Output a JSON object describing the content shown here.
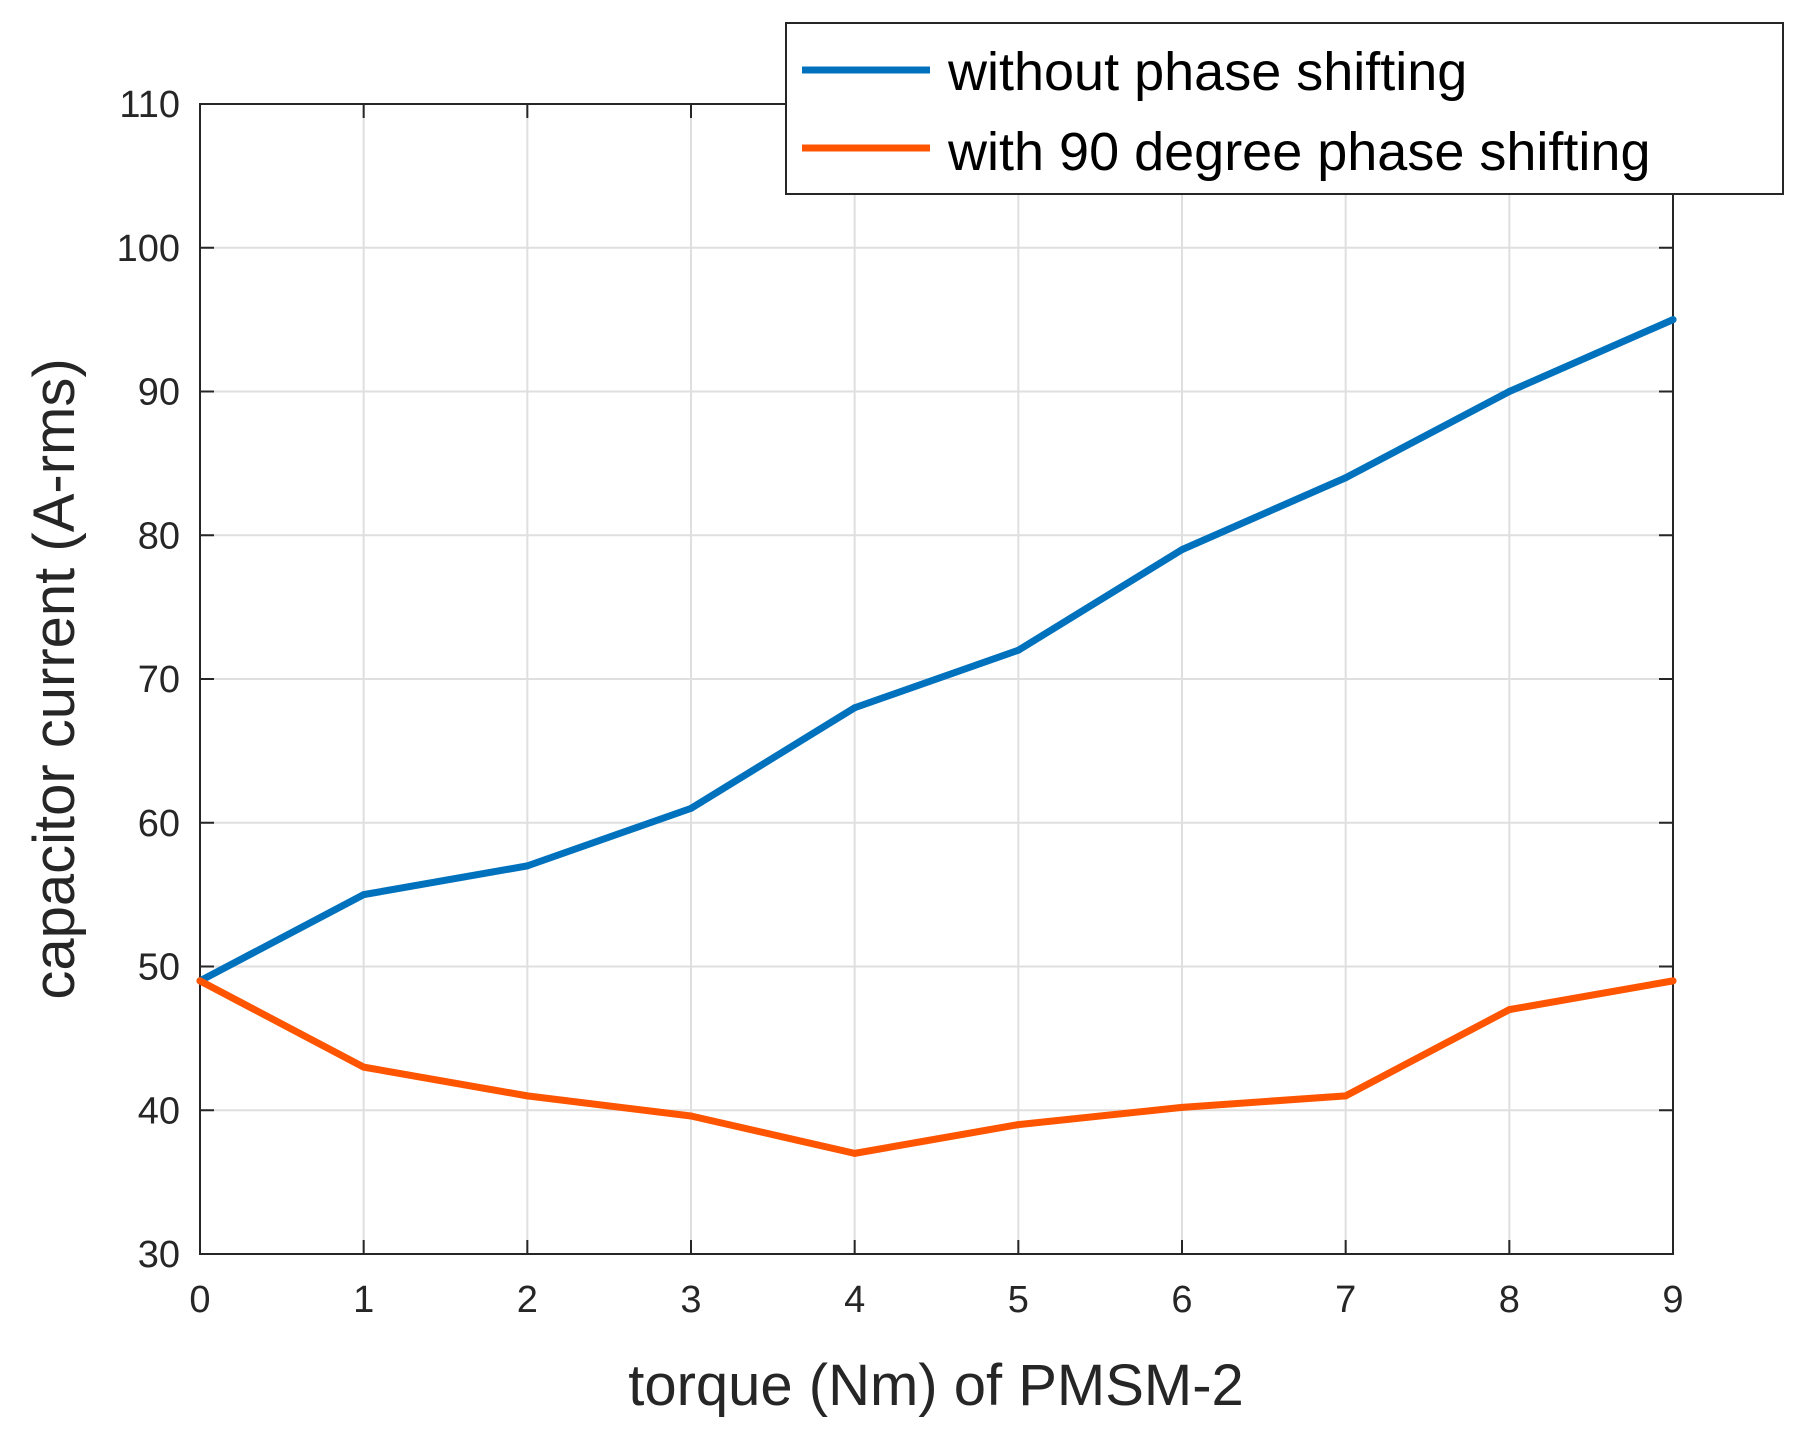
{
  "chart_data": {
    "type": "line",
    "title": "",
    "xlabel": "torque (Nm) of PMSM-2",
    "ylabel": "capacitor current (A-rms)",
    "x": [
      0,
      1,
      2,
      3,
      4,
      5,
      6,
      7,
      8,
      9
    ],
    "xlim": [
      0,
      9
    ],
    "ylim": [
      30,
      110
    ],
    "xticks": [
      0,
      1,
      2,
      3,
      4,
      5,
      6,
      7,
      8,
      9
    ],
    "yticks": [
      30,
      40,
      50,
      60,
      70,
      80,
      90,
      100,
      110
    ],
    "grid": true,
    "legend_position": "top-right",
    "series": [
      {
        "name": "without phase shifting",
        "color": "#0072BD",
        "values": [
          49,
          55,
          57,
          61,
          68,
          72,
          79,
          84,
          90,
          95
        ]
      },
      {
        "name": "with 90 degree phase shifting",
        "color": "#FF5500",
        "values": [
          49,
          43,
          41,
          39.6,
          37,
          39,
          40.2,
          41,
          47,
          49
        ]
      }
    ]
  }
}
